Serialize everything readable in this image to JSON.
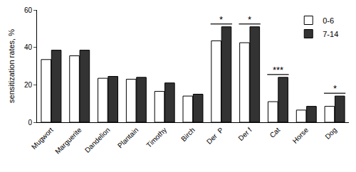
{
  "chart_data": {
    "type": "bar",
    "y_label": "sensitization rates, %",
    "categories": [
      "Mugwort",
      "Marguerite",
      "Dandelion",
      "Plantain",
      "Timothy",
      "Birch",
      "Der  P",
      "Der f",
      "Cat",
      "Horse",
      "Dog"
    ],
    "series": [
      {
        "name": "0-6",
        "color": "#ffffff",
        "values": [
          33.5,
          35.5,
          23.5,
          23,
          16.5,
          14,
          43.5,
          42.5,
          11,
          6.5,
          8.5
        ]
      },
      {
        "name": "7-14",
        "color": "#333333",
        "values": [
          38.5,
          38.5,
          24.5,
          24,
          21,
          15,
          51,
          51,
          24,
          8.5,
          14
        ]
      }
    ],
    "ylim": [
      0,
      60
    ],
    "yticks": [
      0,
      20,
      40,
      60
    ],
    "grid": false,
    "legend": "top right",
    "annotations": [
      {
        "category": "Der  P",
        "text": "*"
      },
      {
        "category": "Der f",
        "text": "*"
      },
      {
        "category": "Cat",
        "text": "***"
      },
      {
        "category": "Dog",
        "text": "*"
      }
    ]
  }
}
